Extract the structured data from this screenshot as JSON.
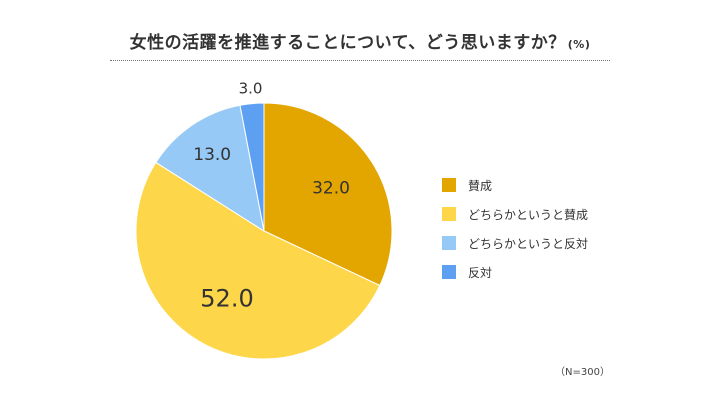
{
  "chart_data": {
    "type": "pie",
    "title": "女性の活躍を推進することについて、どう思いますか？",
    "unit": "(%)",
    "categories": [
      "賛成",
      "どちらかというと賛成",
      "どちらかというと反対",
      "反対"
    ],
    "values": [
      32.0,
      52.0,
      13.0,
      3.0
    ],
    "value_labels": [
      "32.0",
      "52.0",
      "13.0",
      "3.0"
    ],
    "colors": [
      "#e3a600",
      "#fdd64a",
      "#97c9f6",
      "#5d9ff0"
    ],
    "legend_position": "right",
    "note": "（N=300）"
  }
}
